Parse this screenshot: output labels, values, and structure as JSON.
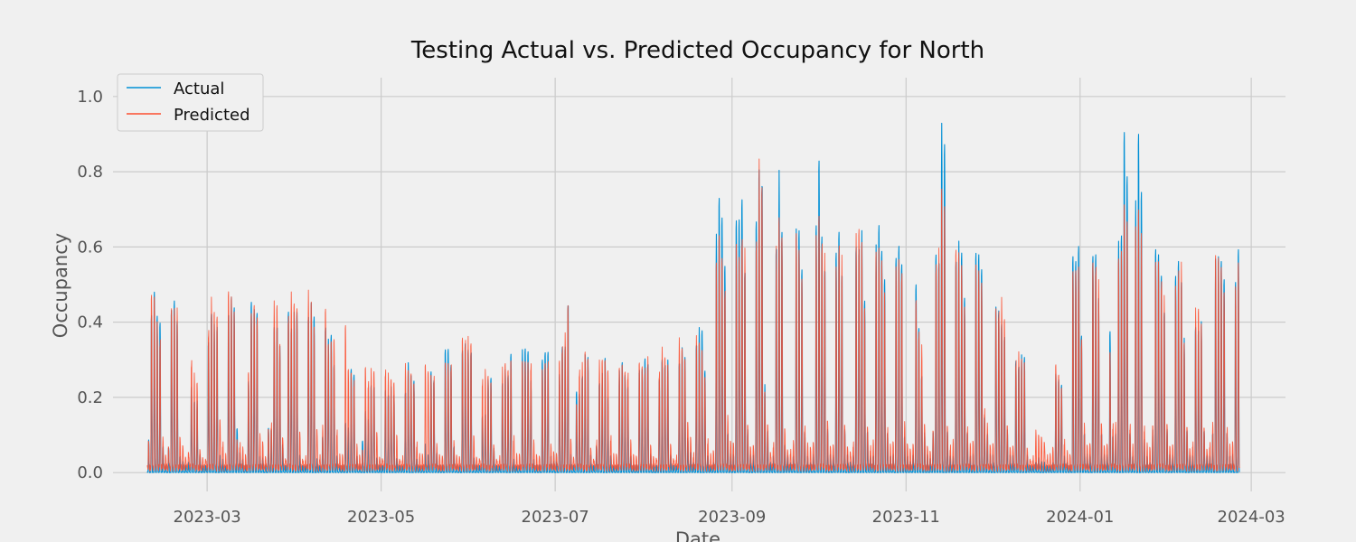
{
  "chart_data": {
    "type": "line",
    "title": "Testing Actual vs. Predicted Occupancy for North",
    "xlabel": "Date",
    "ylabel": "Occupancy",
    "x_range": [
      "2023-01-27",
      "2024-03-13"
    ],
    "ylim": [
      -0.05,
      1.05
    ],
    "x_ticks": [
      "2023-03",
      "2023-05",
      "2023-07",
      "2023-09",
      "2023-11",
      "2024-01",
      "2024-03"
    ],
    "x_tick_dates": [
      "2023-03-01",
      "2023-05-01",
      "2023-07-01",
      "2023-09-01",
      "2023-11-01",
      "2024-01-01",
      "2024-03-01"
    ],
    "y_ticks": [
      0.0,
      0.2,
      0.4,
      0.6,
      0.8,
      1.0
    ],
    "y_tick_labels": [
      "0.0",
      "0.2",
      "0.4",
      "0.6",
      "0.8",
      "1.0"
    ],
    "grid": true,
    "legend_position": "top-left",
    "series": [
      {
        "name": "Actual",
        "color": "#008fd5",
        "start_date": "2023-02-08",
        "daily_peak": [
          0.09,
          0.45,
          0.53,
          0.47,
          0.46,
          0.08,
          0.02,
          0.07,
          0.48,
          0.52,
          0.47,
          0.05,
          0.03,
          0.02,
          0.03,
          0.26,
          0.22,
          0.2,
          0.05,
          0.02,
          0.02,
          0.4,
          0.5,
          0.42,
          0.42,
          0.05,
          0.04,
          0.02,
          0.5,
          0.5,
          0.48,
          0.13,
          0.06,
          0.04,
          0.02,
          0.26,
          0.5,
          0.49,
          0.49,
          0.05,
          0.04,
          0.02,
          0.13,
          0.13,
          0.45,
          0.46,
          0.36,
          0.08,
          0.02,
          0.49,
          0.45,
          0.45,
          0.46,
          0.05,
          0.02,
          0.02,
          0.49,
          0.48,
          0.45,
          0.04,
          0.02,
          0.11,
          0.46,
          0.38,
          0.4,
          0.32,
          0.05,
          0.02,
          0.02,
          0.14,
          0.13,
          0.31,
          0.3,
          0.05,
          0.02,
          0.09,
          0.18,
          0.16,
          0.27,
          0.27,
          0.04,
          0.02,
          0.02,
          0.25,
          0.24,
          0.24,
          0.22,
          0.04,
          0.02,
          0.02,
          0.25,
          0.31,
          0.28,
          0.27,
          0.04,
          0.02,
          0.02,
          0.08,
          0.05,
          0.3,
          0.28,
          0.06,
          0.02,
          0.02,
          0.36,
          0.37,
          0.33,
          0.08,
          0.02,
          0.02,
          0.36,
          0.39,
          0.38,
          0.38,
          0.04,
          0.02,
          0.02,
          0.17,
          0.18,
          0.26,
          0.27,
          0.07,
          0.02,
          0.02,
          0.28,
          0.29,
          0.28,
          0.35,
          0.04,
          0.02,
          0.02,
          0.35,
          0.36,
          0.36,
          0.28,
          0.04,
          0.02,
          0.02,
          0.33,
          0.36,
          0.37,
          0.05,
          0.03,
          0.03,
          0.29,
          0.38,
          0.39,
          0.53,
          0.05,
          0.02,
          0.24,
          0.24,
          0.3,
          0.33,
          0.33,
          0.05,
          0.02,
          0.08,
          0.28,
          0.28,
          0.33,
          0.22,
          0.05,
          0.02,
          0.02,
          0.29,
          0.32,
          0.29,
          0.26,
          0.05,
          0.02,
          0.02,
          0.3,
          0.31,
          0.35,
          0.34,
          0.05,
          0.02,
          0.02,
          0.28,
          0.35,
          0.34,
          0.32,
          0.05,
          0.02,
          0.02,
          0.34,
          0.35,
          0.33,
          0.1,
          0.06,
          0.03,
          0.4,
          0.41,
          0.41,
          0.3,
          0.05,
          0.02,
          0.03,
          0.68,
          0.8,
          0.76,
          0.63,
          0.12,
          0.05,
          0.05,
          0.74,
          0.76,
          0.84,
          0.63,
          0.12,
          0.05,
          0.05,
          0.76,
          0.94,
          0.91,
          0.25,
          0.12,
          0.03,
          0.05,
          0.7,
          0.85,
          0.69,
          0.08,
          0.05,
          0.03,
          0.05,
          0.69,
          0.7,
          0.6,
          0.12,
          0.05,
          0.03,
          0.05,
          0.72,
          0.93,
          0.72,
          0.63,
          0.12,
          0.05,
          0.05,
          0.66,
          0.74,
          0.62,
          0.12,
          0.05,
          0.03,
          0.05,
          0.7,
          0.71,
          0.69,
          0.5,
          0.12,
          0.05,
          0.05,
          0.64,
          0.71,
          0.65,
          0.58,
          0.12,
          0.05,
          0.05,
          0.62,
          0.67,
          0.63,
          0.11,
          0.05,
          0.03,
          0.05,
          0.56,
          0.44,
          0.3,
          0.11,
          0.05,
          0.04,
          0.12,
          0.67,
          0.66,
          0.99,
          0.95,
          0.12,
          0.05,
          0.05,
          0.67,
          0.66,
          0.64,
          0.52,
          0.12,
          0.05,
          0.05,
          0.63,
          0.64,
          0.61,
          0.17,
          0.12,
          0.05,
          0.05,
          0.49,
          0.49,
          0.46,
          0.43,
          0.12,
          0.05,
          0.05,
          0.34,
          0.33,
          0.33,
          0.33,
          0.05,
          0.02,
          0.02,
          0.03,
          0.04,
          0.03,
          0.03,
          0.02,
          0.02,
          0.03,
          0.28,
          0.27,
          0.26,
          0.05,
          0.03,
          0.02,
          0.62,
          0.62,
          0.68,
          0.42,
          0.12,
          0.05,
          0.05,
          0.64,
          0.66,
          0.54,
          0.12,
          0.05,
          0.05,
          0.42,
          0.11,
          0.12,
          0.65,
          0.68,
          1.0,
          0.89,
          0.12,
          0.05,
          0.77,
          0.98,
          0.83,
          0.1,
          0.05,
          0.03,
          0.12,
          0.65,
          0.65,
          0.6,
          0.5,
          0.12,
          0.05,
          0.05,
          0.59,
          0.65,
          0.6,
          0.38,
          0.12,
          0.05,
          0.05,
          0.45,
          0.45,
          0.43,
          0.12,
          0.05,
          0.05,
          0.12,
          0.6,
          0.62,
          0.62,
          0.58,
          0.12,
          0.05,
          0.05,
          0.55,
          0.66
        ]
      },
      {
        "name": "Predicted",
        "color": "#fc4f30",
        "start_date": "2023-02-08",
        "daily_peak": [
          0.07,
          0.51,
          0.52,
          0.46,
          0.4,
          0.08,
          0.03,
          0.06,
          0.49,
          0.49,
          0.44,
          0.08,
          0.06,
          0.03,
          0.05,
          0.33,
          0.26,
          0.24,
          0.05,
          0.03,
          0.03,
          0.43,
          0.48,
          0.45,
          0.45,
          0.15,
          0.07,
          0.03,
          0.5,
          0.5,
          0.47,
          0.09,
          0.07,
          0.05,
          0.03,
          0.28,
          0.47,
          0.51,
          0.47,
          0.09,
          0.07,
          0.03,
          0.12,
          0.13,
          0.46,
          0.46,
          0.36,
          0.09,
          0.03,
          0.47,
          0.49,
          0.47,
          0.47,
          0.11,
          0.03,
          0.03,
          0.5,
          0.48,
          0.42,
          0.12,
          0.03,
          0.11,
          0.45,
          0.36,
          0.38,
          0.4,
          0.11,
          0.03,
          0.03,
          0.42,
          0.3,
          0.3,
          0.27,
          0.06,
          0.03,
          0.05,
          0.31,
          0.26,
          0.27,
          0.27,
          0.1,
          0.03,
          0.03,
          0.3,
          0.26,
          0.25,
          0.25,
          0.1,
          0.03,
          0.03,
          0.29,
          0.28,
          0.28,
          0.26,
          0.07,
          0.03,
          0.03,
          0.3,
          0.29,
          0.29,
          0.28,
          0.06,
          0.03,
          0.03,
          0.32,
          0.33,
          0.32,
          0.07,
          0.03,
          0.03,
          0.4,
          0.39,
          0.36,
          0.35,
          0.09,
          0.03,
          0.03,
          0.27,
          0.27,
          0.26,
          0.25,
          0.07,
          0.03,
          0.03,
          0.28,
          0.3,
          0.29,
          0.33,
          0.09,
          0.03,
          0.03,
          0.31,
          0.32,
          0.33,
          0.32,
          0.07,
          0.03,
          0.03,
          0.3,
          0.33,
          0.33,
          0.06,
          0.04,
          0.04,
          0.33,
          0.37,
          0.37,
          0.46,
          0.08,
          0.03,
          0.2,
          0.3,
          0.29,
          0.33,
          0.32,
          0.06,
          0.03,
          0.08,
          0.3,
          0.31,
          0.32,
          0.3,
          0.09,
          0.03,
          0.03,
          0.29,
          0.31,
          0.3,
          0.29,
          0.07,
          0.03,
          0.03,
          0.32,
          0.32,
          0.31,
          0.31,
          0.06,
          0.03,
          0.03,
          0.29,
          0.33,
          0.31,
          0.3,
          0.07,
          0.03,
          0.03,
          0.36,
          0.34,
          0.32,
          0.14,
          0.1,
          0.04,
          0.37,
          0.36,
          0.35,
          0.28,
          0.08,
          0.03,
          0.04,
          0.6,
          0.7,
          0.65,
          0.55,
          0.14,
          0.07,
          0.07,
          0.68,
          0.66,
          0.72,
          0.62,
          0.12,
          0.06,
          0.07,
          0.7,
          0.86,
          0.8,
          0.22,
          0.13,
          0.05,
          0.07,
          0.62,
          0.72,
          0.68,
          0.12,
          0.06,
          0.05,
          0.07,
          0.68,
          0.65,
          0.58,
          0.12,
          0.06,
          0.05,
          0.07,
          0.7,
          0.78,
          0.7,
          0.6,
          0.13,
          0.06,
          0.07,
          0.63,
          0.7,
          0.6,
          0.12,
          0.06,
          0.05,
          0.07,
          0.65,
          0.68,
          0.66,
          0.48,
          0.13,
          0.06,
          0.07,
          0.62,
          0.65,
          0.63,
          0.55,
          0.12,
          0.06,
          0.07,
          0.6,
          0.64,
          0.6,
          0.12,
          0.06,
          0.05,
          0.07,
          0.52,
          0.42,
          0.34,
          0.12,
          0.06,
          0.05,
          0.12,
          0.64,
          0.62,
          0.81,
          0.78,
          0.13,
          0.06,
          0.07,
          0.62,
          0.63,
          0.61,
          0.5,
          0.12,
          0.06,
          0.07,
          0.6,
          0.6,
          0.58,
          0.18,
          0.12,
          0.06,
          0.07,
          0.49,
          0.48,
          0.47,
          0.42,
          0.12,
          0.06,
          0.07,
          0.33,
          0.32,
          0.31,
          0.31,
          0.06,
          0.03,
          0.03,
          0.1,
          0.09,
          0.09,
          0.08,
          0.03,
          0.03,
          0.05,
          0.3,
          0.28,
          0.25,
          0.08,
          0.04,
          0.03,
          0.58,
          0.6,
          0.63,
          0.4,
          0.12,
          0.06,
          0.07,
          0.63,
          0.62,
          0.52,
          0.12,
          0.06,
          0.07,
          0.36,
          0.13,
          0.12,
          0.6,
          0.64,
          0.8,
          0.77,
          0.13,
          0.06,
          0.7,
          0.77,
          0.72,
          0.12,
          0.06,
          0.05,
          0.12,
          0.62,
          0.64,
          0.58,
          0.48,
          0.12,
          0.06,
          0.07,
          0.57,
          0.62,
          0.58,
          0.36,
          0.12,
          0.06,
          0.07,
          0.44,
          0.45,
          0.42,
          0.12,
          0.06,
          0.07,
          0.12,
          0.61,
          0.62,
          0.61,
          0.55,
          0.12,
          0.06,
          0.07,
          0.54,
          0.63
        ]
      }
    ]
  }
}
